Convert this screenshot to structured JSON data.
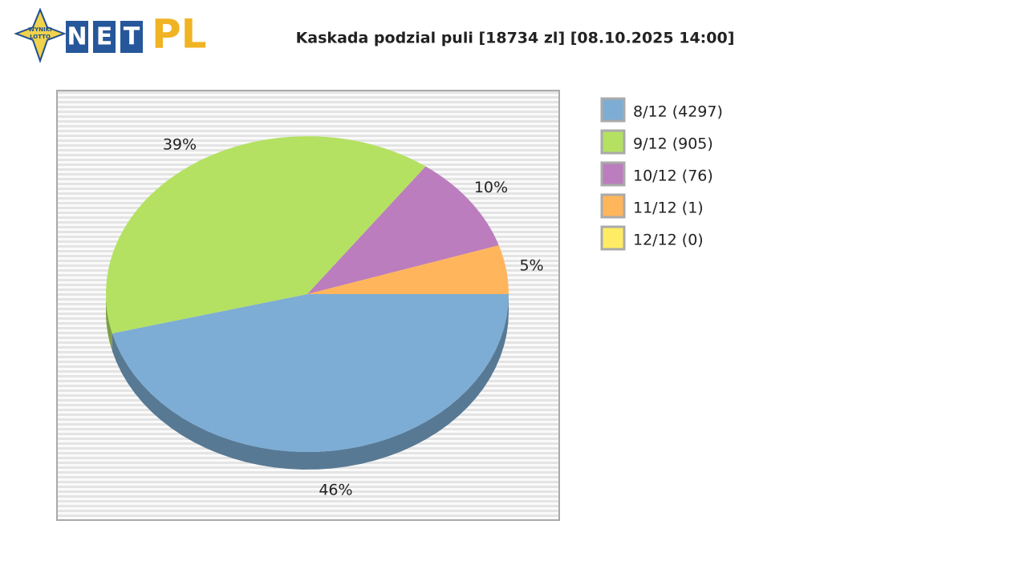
{
  "logo": {
    "badge": [
      "WYNIKI",
      "LOTTO"
    ],
    "letters": [
      "N",
      "E",
      "T"
    ],
    "suffix": "PL"
  },
  "chart_data": {
    "type": "pie",
    "title": "Kaskada podzial puli [18734 zl] [08.10.2025 14:00]",
    "categories": [
      "8/12 (4297)",
      "9/12 (905)",
      "10/12 (76)",
      "11/12 (1)",
      "12/12 (0)"
    ],
    "values": [
      46,
      39,
      10,
      5,
      0
    ],
    "value_labels": [
      "46%",
      "39%",
      "10%",
      "5%",
      null
    ],
    "colors": [
      "#7dadd4",
      "#b4e162",
      "#bb7dbd",
      "#ffb55c",
      "#ffec64"
    ],
    "legend": "right"
  }
}
